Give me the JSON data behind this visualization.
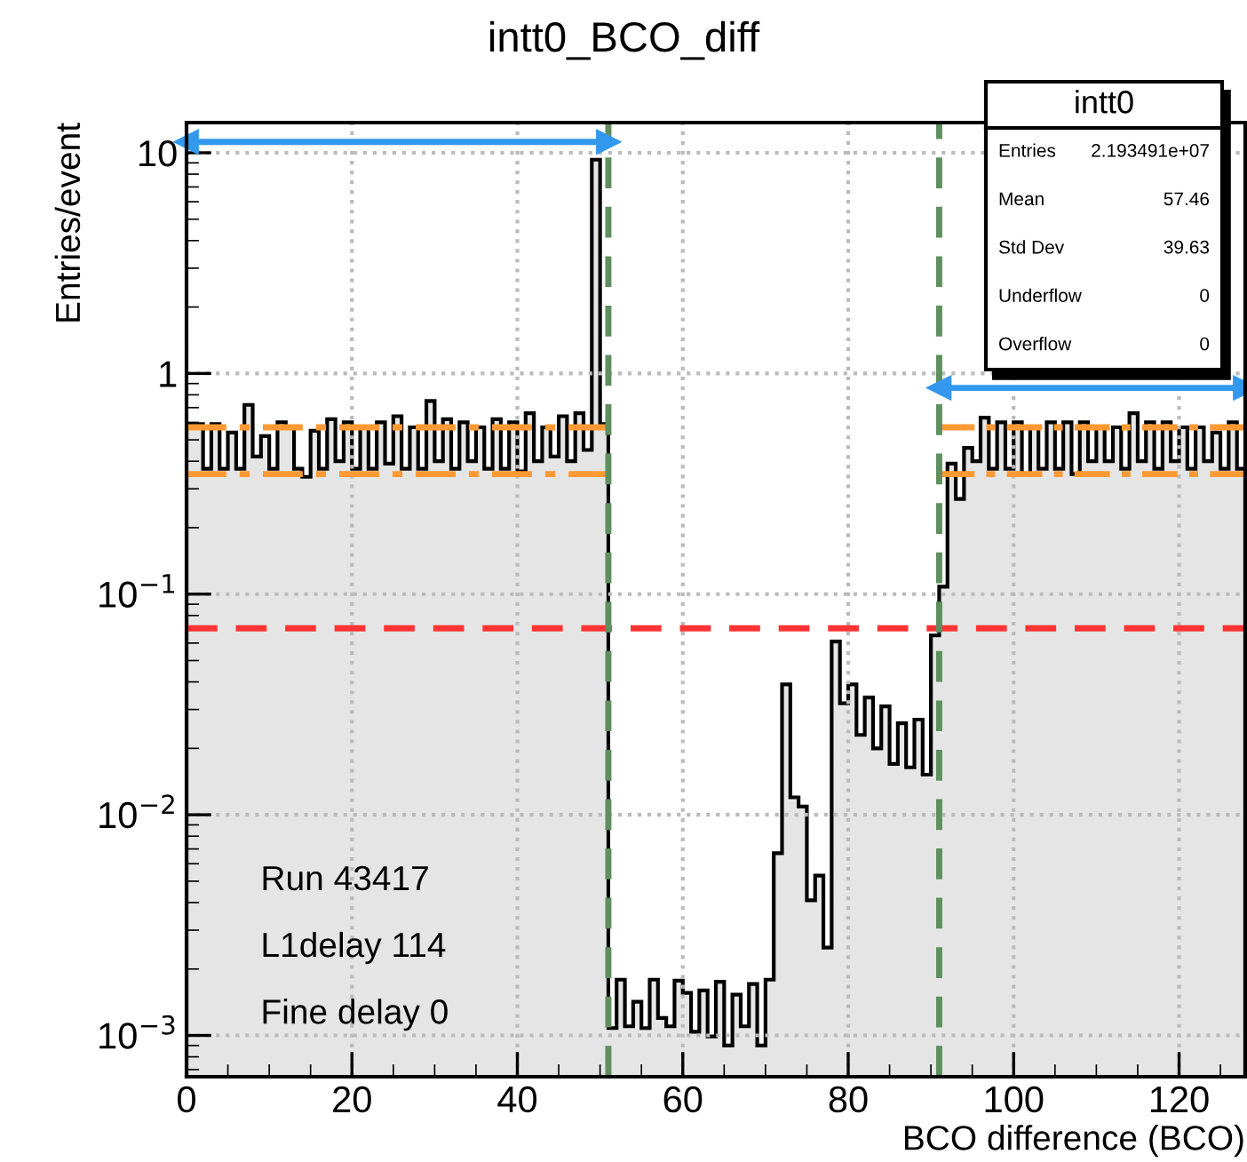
{
  "chart_data": {
    "type": "histogram",
    "title": "intt0_BCO_diff",
    "xlabel": "BCO difference (BCO)",
    "ylabel": "Entries/event",
    "bins": [
      0,
      1,
      2,
      3,
      4,
      5,
      6,
      7,
      8,
      9,
      10,
      11,
      12,
      13,
      14,
      15,
      16,
      17,
      18,
      19,
      20,
      21,
      22,
      23,
      24,
      25,
      26,
      27,
      28,
      29,
      30,
      31,
      32,
      33,
      34,
      35,
      36,
      37,
      38,
      39,
      40,
      41,
      42,
      43,
      44,
      45,
      46,
      47,
      48,
      49,
      50,
      51,
      52,
      53,
      54,
      55,
      56,
      57,
      58,
      59,
      60,
      61,
      62,
      63,
      64,
      65,
      66,
      67,
      68,
      69,
      70,
      71,
      72,
      73,
      74,
      75,
      76,
      77,
      78,
      79,
      80,
      81,
      82,
      83,
      84,
      85,
      86,
      87,
      88,
      89,
      90,
      91,
      92,
      93,
      94,
      95,
      96,
      97,
      98,
      99,
      100,
      101,
      102,
      103,
      104,
      105,
      106,
      107,
      108,
      109,
      110,
      111,
      112,
      113,
      114,
      115,
      116,
      117,
      118,
      119,
      120,
      121,
      122,
      123,
      124,
      125,
      126,
      127,
      128
    ],
    "series": [
      {
        "color": "#e5e5e5",
        "values": [
          0.59,
          0.59,
          0.37,
          0.59,
          0.37,
          0.54,
          0.37,
          0.72,
          0.42,
          0.52,
          0.37,
          0.6,
          0.57,
          0.37,
          0.34,
          0.55,
          0.37,
          0.62,
          0.4,
          0.6,
          0.37,
          0.57,
          0.37,
          0.6,
          0.39,
          0.64,
          0.37,
          0.57,
          0.37,
          0.75,
          0.4,
          0.62,
          0.37,
          0.6,
          0.4,
          0.57,
          0.37,
          0.62,
          0.37,
          0.6,
          0.36,
          0.66,
          0.4,
          0.57,
          0.42,
          0.64,
          0.4,
          0.66,
          0.45,
          9.3,
          0.59,
          0.00108,
          0.00179,
          0.0011,
          0.00142,
          0.00108,
          0.00179,
          0.0012,
          0.0011,
          0.00177,
          0.00156,
          0.00104,
          0.0016,
          0.00099,
          0.00175,
          0.0009,
          0.00153,
          0.0011,
          0.00171,
          0.0009,
          0.00179,
          0.0067,
          0.039,
          0.012,
          0.0109,
          0.0041,
          0.0053,
          0.0025,
          0.061,
          0.032,
          0.039,
          0.023,
          0.034,
          0.02,
          0.031,
          0.017,
          0.026,
          0.0164,
          0.027,
          0.0152,
          0.065,
          0.108,
          0.39,
          0.27,
          0.46,
          0.4,
          0.63,
          0.37,
          0.6,
          0.37,
          0.6,
          0.35,
          0.57,
          0.37,
          0.6,
          0.37,
          0.6,
          0.35,
          0.6,
          0.4,
          0.57,
          0.4,
          0.57,
          0.37,
          0.66,
          0.4,
          0.6,
          0.37,
          0.6,
          0.4,
          0.57,
          0.37,
          0.57,
          0.4,
          0.54,
          0.37,
          0.6,
          0.37
        ]
      },
      {
        "type": "line",
        "color": "#ff9933",
        "line_style": "dashdot",
        "x": [
          0,
          51
        ],
        "values": [
          0.57,
          0.57
        ]
      },
      {
        "type": "line",
        "color": "#ff9933",
        "line_style": "dashdot",
        "x": [
          0,
          51
        ],
        "values": [
          0.35,
          0.35
        ]
      },
      {
        "type": "line",
        "color": "#ff9933",
        "line_style": "dashdot",
        "x": [
          91,
          128
        ],
        "values": [
          0.57,
          0.57
        ]
      },
      {
        "type": "line",
        "color": "#ff9933",
        "line_style": "dashdot",
        "x": [
          91,
          128
        ],
        "values": [
          0.35,
          0.35
        ]
      },
      {
        "type": "line",
        "marker": "triangle",
        "color": "#3399ee",
        "x": [
          0,
          51
        ],
        "values": [
          11.2,
          11.2
        ]
      },
      {
        "type": "line",
        "marker": "triangle",
        "color": "#3399ee",
        "x": [
          91,
          128
        ],
        "values": [
          0.86,
          0.86
        ]
      }
    ],
    "ref_lines": [
      {
        "axis": "y",
        "value": 0.07,
        "color": "#ff3333",
        "line_style": "dashed"
      },
      {
        "axis": "x",
        "value": 51,
        "color": "#5f8f5f",
        "line_style": "dashed"
      },
      {
        "axis": "x",
        "value": 91,
        "color": "#5f8f5f",
        "line_style": "dashed"
      }
    ],
    "xlim": [
      0,
      128
    ],
    "xticks": [
      0,
      20,
      40,
      60,
      80,
      100,
      120
    ],
    "ylim": [
      0.00065,
      13.7
    ],
    "log": true,
    "yticks": [
      {
        "value": 0.001,
        "label": "10$^{−3}$"
      },
      {
        "value": 0.01,
        "label": "10$^{−2}$"
      },
      {
        "value": 0.1,
        "label": "10$^{−1}$"
      },
      1,
      10
    ],
    "grid": true,
    "annotations": [
      "intt0",
      "Entries",
      "2.193491e+07",
      "Mean",
      "57.46",
      "Std Dev",
      "39.63",
      "Underflow",
      "0",
      "Overflow",
      "0",
      "Run 43417",
      "L1delay 114",
      "Fine delay 0"
    ]
  }
}
